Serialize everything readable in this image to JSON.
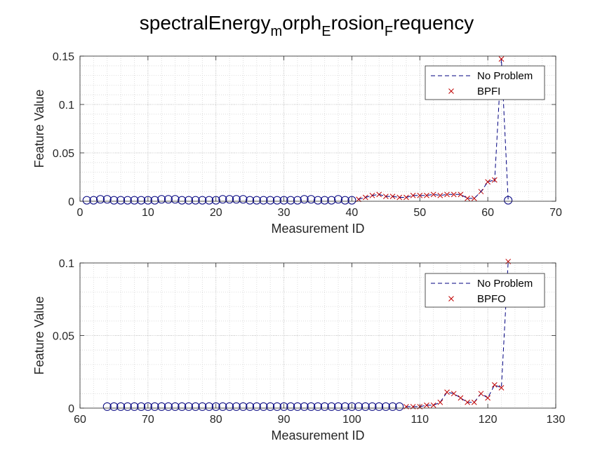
{
  "chart_data": {
    "title": "spectralEnergy_morph_Erosion_Frequency",
    "title_parts": [
      {
        "text": "spectralEnergy",
        "sub": false
      },
      {
        "text": "m",
        "sub": true
      },
      {
        "text": "orph",
        "sub": false
      },
      {
        "text": "E",
        "sub": true
      },
      {
        "text": "rosion",
        "sub": false
      },
      {
        "text": "F",
        "sub": true
      },
      {
        "text": "requency",
        "sub": false
      }
    ],
    "colors": {
      "normal": "#00007f",
      "fault": "#c00000",
      "grid": "#d6d6d6",
      "axis": "#262626"
    },
    "plots": [
      {
        "type": "scatter",
        "xlabel": "Measurement ID",
        "ylabel": "Feature Value",
        "xlim": [
          0,
          70
        ],
        "ylim": [
          0,
          0.15
        ],
        "xticks": [
          0,
          10,
          20,
          30,
          40,
          50,
          60,
          70
        ],
        "yticks": [
          0,
          0.05,
          0.1,
          0.15
        ],
        "ytick_labels": [
          "0",
          "0.05",
          "0.1",
          "0.15"
        ],
        "grid": true,
        "legend_position": "top-right",
        "series": [
          {
            "name": "No Problem",
            "style": "dashed-line",
            "color": "#00007f",
            "x": [
              61,
              62,
              63
            ],
            "y": [
              0.02,
              0.147,
              0.001
            ]
          },
          {
            "name": "BPFI",
            "style": "cross",
            "color": "#c00000",
            "x": [
              41,
              42,
              43,
              44,
              45,
              46,
              47,
              48,
              49,
              50,
              51,
              52,
              53,
              54,
              55,
              56,
              57,
              58,
              59,
              60,
              61,
              62
            ],
            "y": [
              0.002,
              0.004,
              0.006,
              0.007,
              0.005,
              0.005,
              0.004,
              0.004,
              0.006,
              0.006,
              0.006,
              0.007,
              0.006,
              0.007,
              0.007,
              0.007,
              0.003,
              0.003,
              0.01,
              0.02,
              0.022,
              0.147
            ]
          },
          {
            "name": "",
            "style": "circle",
            "color": "#00007f",
            "x": [
              1,
              2,
              3,
              4,
              5,
              6,
              7,
              8,
              9,
              10,
              11,
              12,
              13,
              14,
              15,
              16,
              17,
              18,
              19,
              20,
              21,
              22,
              23,
              24,
              25,
              26,
              27,
              28,
              29,
              30,
              31,
              32,
              33,
              34,
              35,
              36,
              37,
              38,
              39,
              40,
              63
            ],
            "y": [
              0.001,
              0.001,
              0.002,
              0.002,
              0.001,
              0.001,
              0.001,
              0.001,
              0.001,
              0.001,
              0.001,
              0.002,
              0.002,
              0.002,
              0.001,
              0.001,
              0.001,
              0.001,
              0.001,
              0.001,
              0.002,
              0.002,
              0.002,
              0.002,
              0.001,
              0.001,
              0.001,
              0.001,
              0.001,
              0.001,
              0.001,
              0.001,
              0.002,
              0.002,
              0.001,
              0.001,
              0.001,
              0.002,
              0.001,
              0.001,
              0.001
            ]
          },
          {
            "name": "",
            "style": "dashed-line",
            "color": "#00007f",
            "x": [
              41,
              42,
              43,
              44,
              45,
              46,
              47,
              48,
              49,
              50,
              51,
              52,
              53,
              54,
              55,
              56,
              57,
              58,
              59,
              60,
              61
            ],
            "y": [
              0.002,
              0.004,
              0.006,
              0.007,
              0.005,
              0.005,
              0.004,
              0.004,
              0.006,
              0.006,
              0.006,
              0.007,
              0.006,
              0.007,
              0.007,
              0.007,
              0.003,
              0.003,
              0.01,
              0.02,
              0.022
            ]
          }
        ]
      },
      {
        "type": "scatter",
        "xlabel": "Measurement ID",
        "ylabel": "Feature Value",
        "xlim": [
          60,
          130
        ],
        "ylim": [
          0,
          0.1
        ],
        "xticks": [
          60,
          70,
          80,
          90,
          100,
          110,
          120,
          130
        ],
        "yticks": [
          0,
          0.05,
          0.1
        ],
        "ytick_labels": [
          "0",
          "0.05",
          "0.1"
        ],
        "grid": true,
        "legend_position": "top-right",
        "series": [
          {
            "name": "No Problem",
            "style": "dashed-line",
            "color": "#00007f",
            "x": [
              108,
              109,
              110,
              111,
              112,
              113,
              114,
              115,
              116,
              117,
              118,
              119,
              120,
              121,
              122,
              123
            ],
            "y": [
              0.001,
              0.001,
              0.001,
              0.002,
              0.002,
              0.004,
              0.011,
              0.01,
              0.007,
              0.004,
              0.004,
              0.01,
              0.007,
              0.016,
              0.014,
              0.101
            ]
          },
          {
            "name": "BPFO",
            "style": "cross",
            "color": "#c00000",
            "x": [
              108,
              109,
              110,
              111,
              112,
              113,
              114,
              115,
              116,
              117,
              118,
              119,
              120,
              121,
              122,
              123
            ],
            "y": [
              0.001,
              0.001,
              0.001,
              0.002,
              0.002,
              0.004,
              0.011,
              0.01,
              0.007,
              0.004,
              0.004,
              0.01,
              0.007,
              0.016,
              0.014,
              0.101
            ]
          },
          {
            "name": "",
            "style": "circle",
            "color": "#00007f",
            "x": [
              64,
              65,
              66,
              67,
              68,
              69,
              70,
              71,
              72,
              73,
              74,
              75,
              76,
              77,
              78,
              79,
              80,
              81,
              82,
              83,
              84,
              85,
              86,
              87,
              88,
              89,
              90,
              91,
              92,
              93,
              94,
              95,
              96,
              97,
              98,
              99,
              100,
              101,
              102,
              103,
              104,
              105,
              106,
              107
            ],
            "y": [
              0.001,
              0.001,
              0.001,
              0.001,
              0.001,
              0.001,
              0.001,
              0.001,
              0.001,
              0.001,
              0.001,
              0.001,
              0.001,
              0.001,
              0.001,
              0.001,
              0.001,
              0.001,
              0.001,
              0.001,
              0.001,
              0.001,
              0.001,
              0.001,
              0.001,
              0.001,
              0.001,
              0.001,
              0.001,
              0.001,
              0.001,
              0.001,
              0.001,
              0.001,
              0.001,
              0.001,
              0.001,
              0.001,
              0.001,
              0.001,
              0.001,
              0.001,
              0.001,
              0.001
            ]
          }
        ]
      }
    ]
  }
}
